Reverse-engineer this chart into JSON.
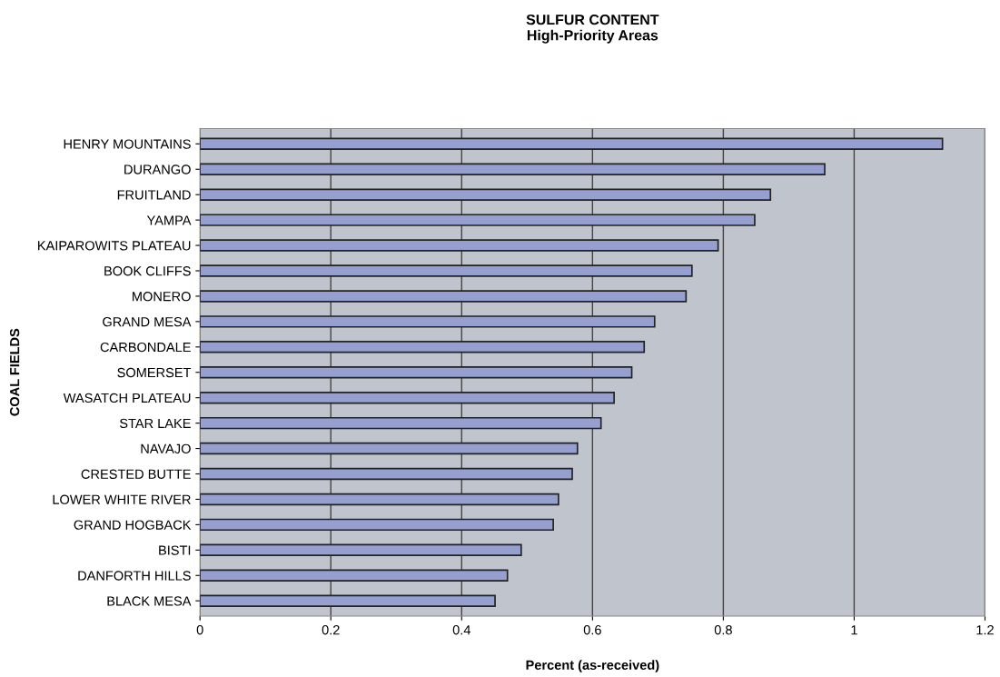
{
  "chart_data": {
    "type": "bar",
    "orientation": "horizontal",
    "title": "SULFUR CONTENT\nHigh-Priority Areas",
    "xlabel": "Percent (as-received)",
    "ylabel": "COAL FIELDS",
    "categories": [
      "HENRY MOUNTAINS",
      "DURANGO",
      "FRUITLAND",
      "YAMPA",
      "KAIPAROWITS PLATEAU",
      "BOOK CLIFFS",
      "MONERO",
      "GRAND MESA",
      "CARBONDALE",
      "SOMERSET",
      "WASATCH PLATEAU",
      "STAR LAKE",
      "NAVAJO",
      "CRESTED BUTTE",
      "LOWER WHITE RIVER",
      "GRAND HOGBACK",
      "BISTI",
      "DANFORTH HILLS",
      "BLACK MESA"
    ],
    "values": [
      1.135,
      0.955,
      0.872,
      0.848,
      0.792,
      0.752,
      0.743,
      0.695,
      0.679,
      0.66,
      0.633,
      0.613,
      0.577,
      0.569,
      0.548,
      0.54,
      0.491,
      0.47,
      0.451
    ],
    "color": "#959fd0",
    "xlim": [
      0,
      1.2
    ],
    "xticks": [
      0,
      0.2,
      0.4,
      0.6,
      0.8,
      1,
      1.2
    ],
    "grid": "x"
  }
}
